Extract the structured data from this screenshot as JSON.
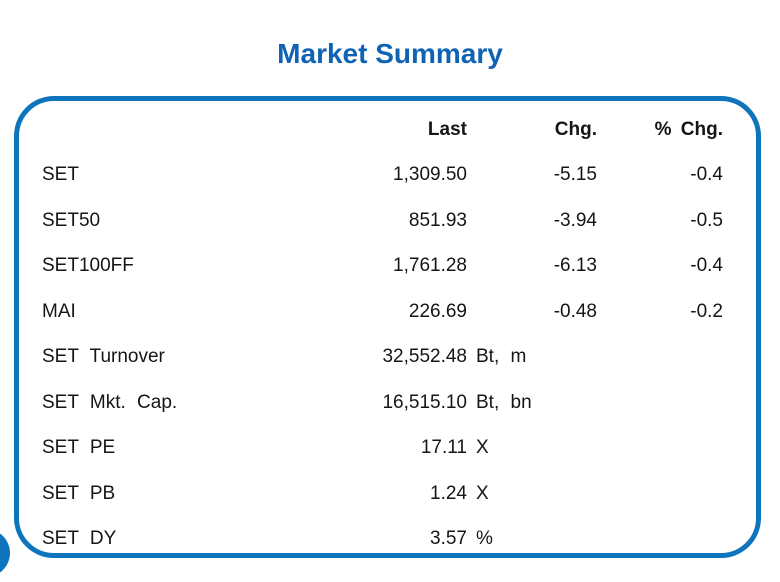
{
  "page": {
    "title": "Market Summary"
  },
  "colors": {
    "title_blue": "#0f63b4",
    "border_blue": "#0e74bb"
  },
  "table": {
    "headers": {
      "label": "",
      "last": "Last",
      "chg": "Chg.",
      "pct": "% Chg."
    },
    "rows": [
      {
        "label": "SET",
        "last": "1,309.50",
        "unit": "",
        "chg": "-5.15",
        "pct": "-0.4"
      },
      {
        "label": "SET50",
        "last": "851.93",
        "unit": "",
        "chg": "-3.94",
        "pct": "-0.5"
      },
      {
        "label": "SET100FF",
        "last": "1,761.28",
        "unit": "",
        "chg": "-6.13",
        "pct": "-0.4"
      },
      {
        "label": "MAI",
        "last": "226.69",
        "unit": "",
        "chg": "-0.48",
        "pct": "-0.2"
      },
      {
        "label": "SET Turnover",
        "last": "32,552.48",
        "unit": "Bt, m",
        "chg": "",
        "pct": ""
      },
      {
        "label": "SET Mkt. Cap.",
        "last": "16,515.10",
        "unit": "Bt, bn",
        "chg": "",
        "pct": ""
      },
      {
        "label": "SET PE",
        "last": "17.11",
        "unit": "X",
        "chg": "",
        "pct": ""
      },
      {
        "label": "SET PB",
        "last": "1.24",
        "unit": "X",
        "chg": "",
        "pct": ""
      },
      {
        "label": "SET DY",
        "last": "3.57",
        "unit": "%",
        "chg": "",
        "pct": ""
      }
    ]
  }
}
